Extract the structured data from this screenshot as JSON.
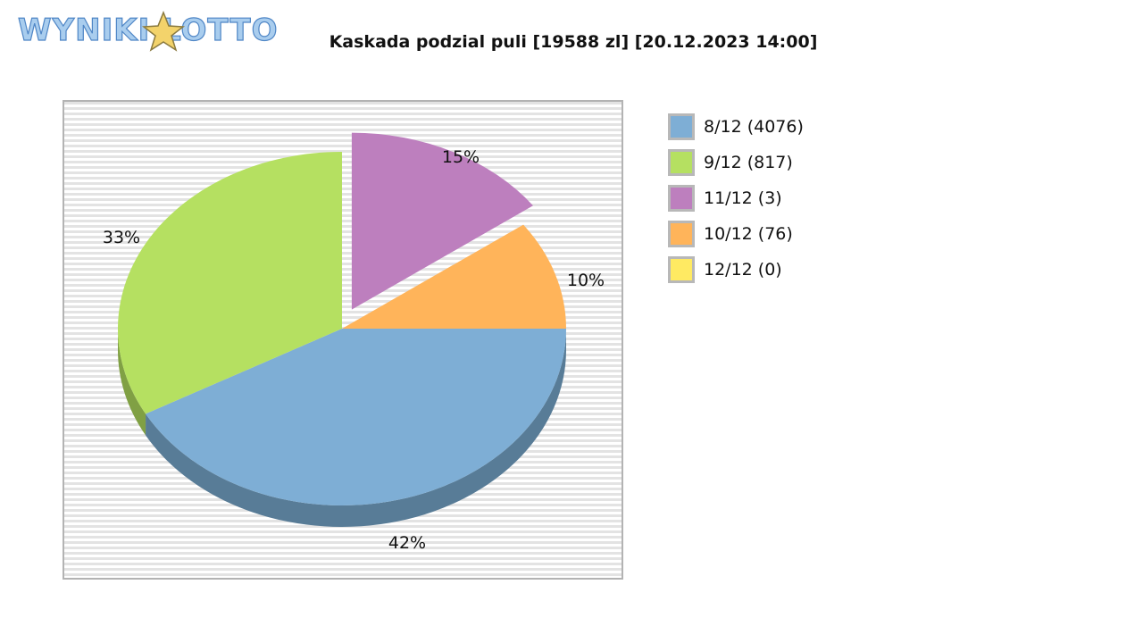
{
  "logo": {
    "text": "WYNIKI LOTTO",
    "icon": "star-icon"
  },
  "chart_data": {
    "type": "pie",
    "title": "Kaskada podzial puli [19588 zl] [20.12.2023 14:00]",
    "legend_position": "right",
    "slices": [
      {
        "name": "8/12 (4076)",
        "percent": 42,
        "label": "42%",
        "color": "#7eaed5",
        "shade": "#587c97"
      },
      {
        "name": "9/12 (817)",
        "percent": 33,
        "label": "33%",
        "color": "#b5e061",
        "shade": "#80a044"
      },
      {
        "name": "11/12 (3)",
        "percent": 15,
        "label": "15%",
        "color": "#bd7fbe",
        "shade": "#865a87"
      },
      {
        "name": "10/12 (76)",
        "percent": 10,
        "label": "10%",
        "color": "#ffb45a",
        "shade": "#b47f40"
      },
      {
        "name": "12/12 (0)",
        "percent": 0,
        "label": "",
        "color": "#ffea62",
        "shade": "#b4a545"
      }
    ]
  }
}
